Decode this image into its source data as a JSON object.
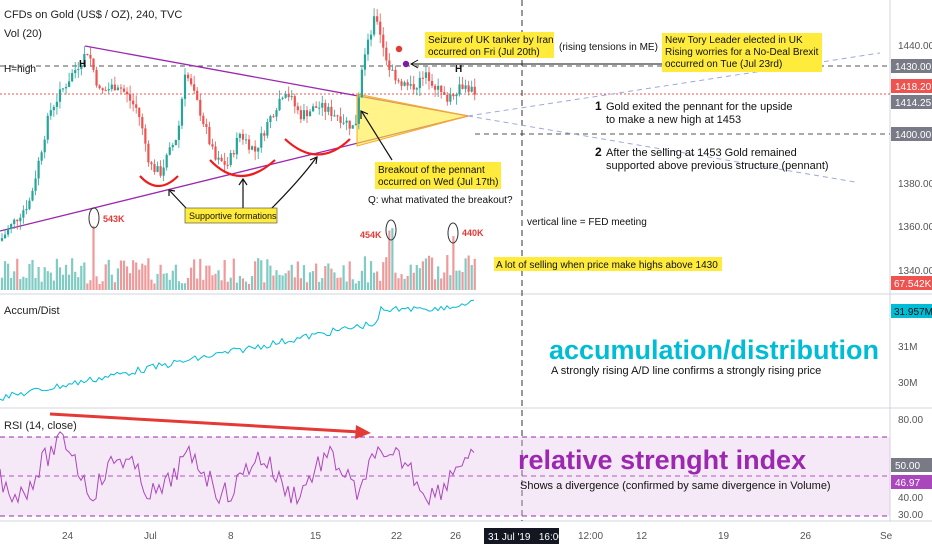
{
  "header": {
    "symbol": "CFDs on Gold (US$ / OZ), 240, TVC",
    "volume_label": "Vol (20)",
    "high_legend": "H=high"
  },
  "price_axis": {
    "ticks": [
      "1440.00",
      "1380.00",
      "1360.00",
      "1340.00"
    ],
    "badges": {
      "level_1430": {
        "text": "1430.00",
        "color": "#787b86"
      },
      "last": {
        "text": "1418.20",
        "color": "#ef5350"
      },
      "prev": {
        "text": "1414.25",
        "color": "#787b86"
      },
      "level_1400": {
        "text": "1400.00",
        "color": "#787b86"
      },
      "volume": {
        "text": "67.542K",
        "color": "#ef5350"
      }
    }
  },
  "annotations": {
    "tanker": "Seizure of UK tanker by Iran\noccurred on Fri (Jul 20th)",
    "tensions": "(rising tensions in ME)",
    "tory": "New Tory Leader elected in UK\nRising worries for a No-Deal Brexit\noccurred on Tue (Jul 23rd)",
    "note1_num": "1",
    "note1": "Gold exited the pennant for the upside\nto make a new high at 1453",
    "note2_num": "2",
    "note2": "After the selling at 1453 Gold remained\nsupported above previous structure (pennant)",
    "breakout": "Breakout of the pennant\noccurred on Wed (Jul 17th)",
    "question": "Q: what mativated the breakout?",
    "fed": "vertical line = FED meeting",
    "supportive": "Supportive formations",
    "selling": "A lot of selling when price make highs above 1430",
    "vol_543": "543K",
    "vol_454": "454K",
    "vol_440": "440K",
    "h_marker": "H"
  },
  "ad_panel": {
    "label": "Accum/Dist",
    "ticks": [
      "31M",
      "30M"
    ],
    "badge": {
      "text": "31.957M",
      "color": "#00bcd4"
    },
    "title": "accumulation/distribution",
    "subtitle": "A strongly rising A/D line confirms a strongly rising price"
  },
  "rsi_panel": {
    "label": "RSI (14, close)",
    "ticks": [
      "80.00",
      "40.00",
      "30.00"
    ],
    "badges": {
      "mid": {
        "text": "50.00",
        "color": "#787b86"
      },
      "last": {
        "text": "46.97",
        "color": "#ab47bc"
      }
    },
    "title": "relative strenght index",
    "subtitle": "Shows a divergence (confirmed by same divergence in Volume)"
  },
  "time_axis": {
    "labels": [
      "24",
      "Jul",
      "8",
      "15",
      "22",
      "26",
      "12:00",
      "12",
      "19",
      "26",
      "Se"
    ],
    "cursor_label": "31 Jul '19   16:00"
  },
  "colors": {
    "up": "#26a69a",
    "down": "#ef5350",
    "pennant": "#9c27b0",
    "ad_line": "#00bcd4",
    "rsi_line": "#ab47bc",
    "note_bg": "#ffeb3b",
    "title_ad": "#00bcd4",
    "title_rsi": "#9c27b0"
  },
  "chart_data": {
    "type": "candlestick",
    "series": [
      {
        "name": "CFDs on Gold (US$ / OZ), 240, TVC"
      },
      {
        "name": "Vol (20)"
      },
      {
        "name": "Accum/Dist"
      },
      {
        "name": "RSI (14, close)"
      }
    ],
    "price_range": [
      1330,
      1455
    ],
    "anchor_prices": {
      "jun24_low": 1352,
      "jun25_high": 1437,
      "early_jul_low": 1382,
      "jul19_high": 1453,
      "last": 1418.2
    },
    "levels": [
      1430,
      1414.25,
      1400
    ],
    "rsi_levels": [
      70,
      50,
      30
    ],
    "rsi_last": 46.97,
    "ad_last": "31.957M"
  }
}
